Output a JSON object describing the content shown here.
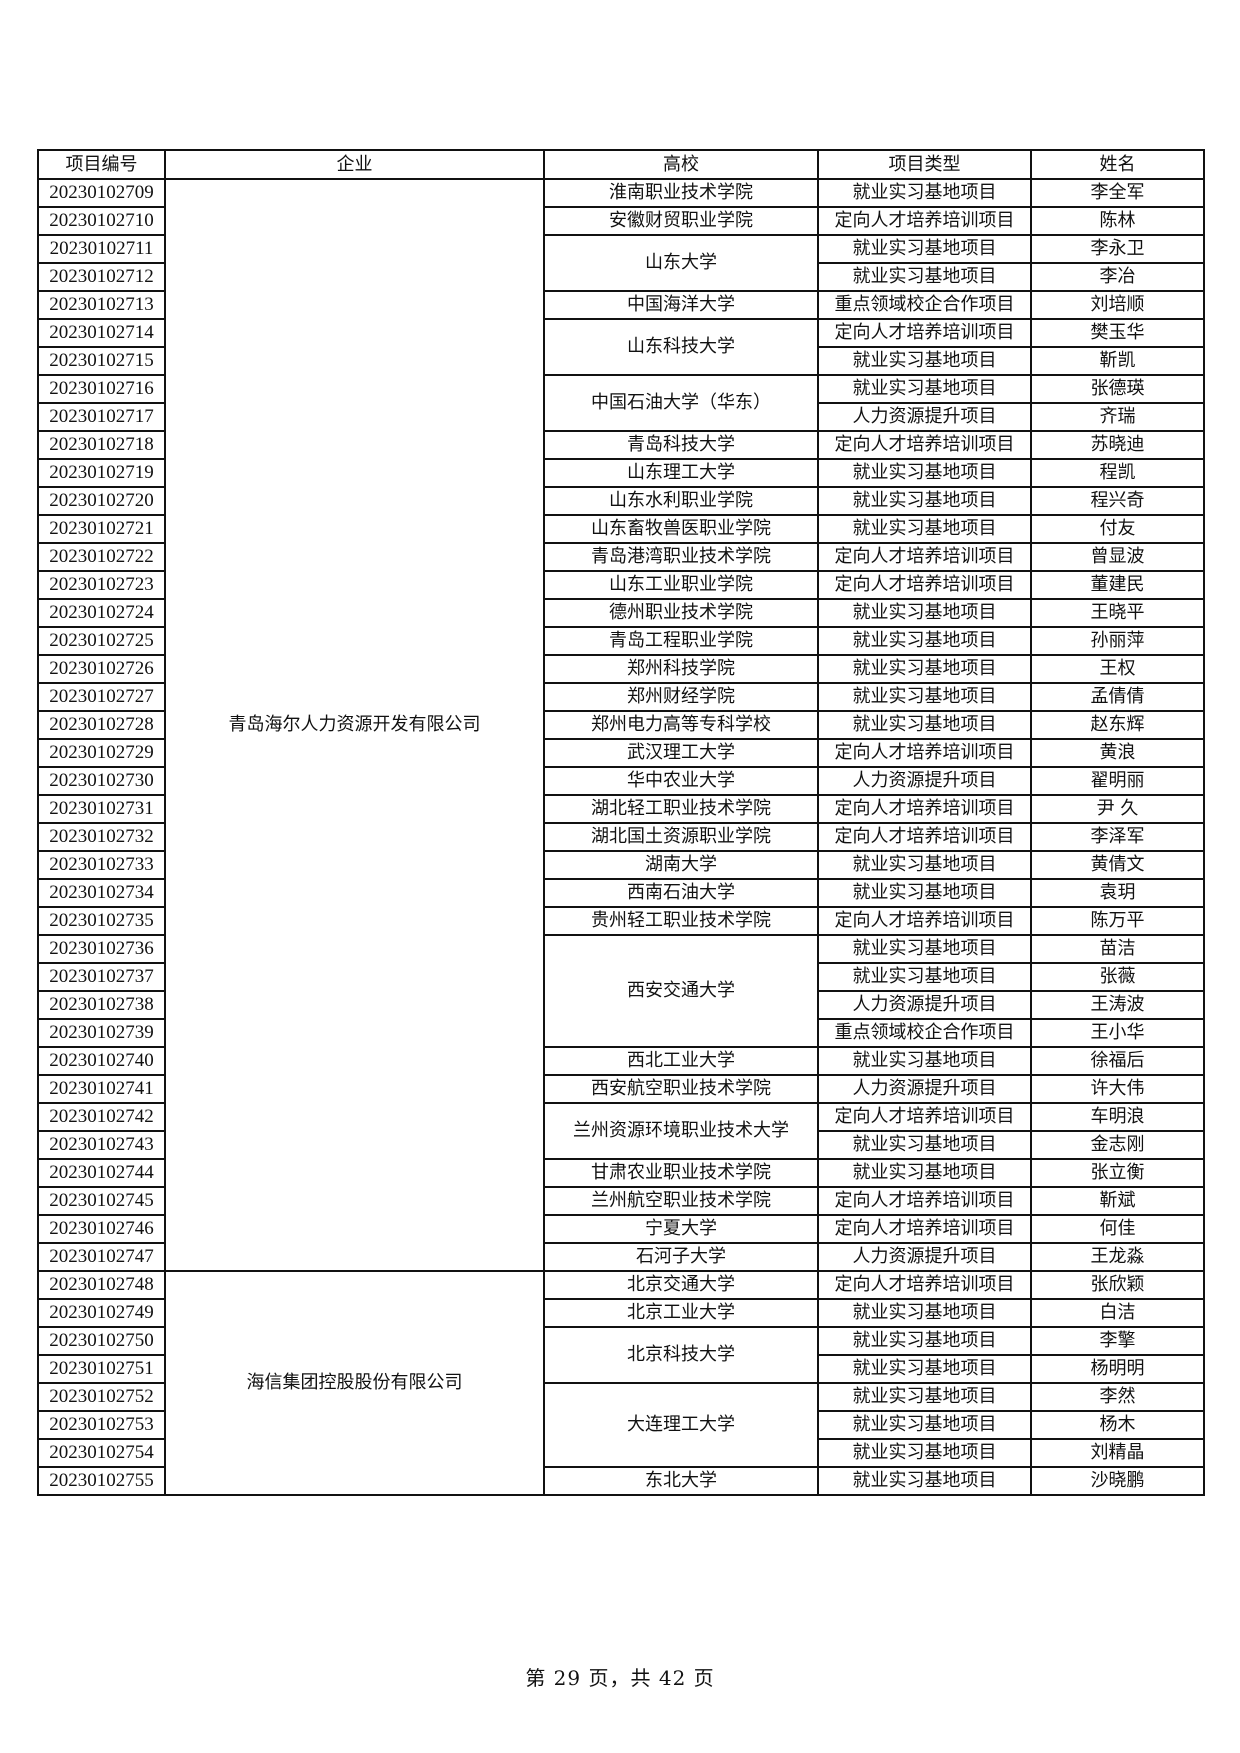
{
  "headers": [
    "项目编号",
    "企业",
    "高校",
    "项目类型",
    "姓名"
  ],
  "companies": [
    {
      "name": "青岛海尔人力资源开发有限公司",
      "span": 39
    },
    {
      "name": "海信集团控股股份有限公司",
      "span": 8
    }
  ],
  "schools": [
    {
      "name": "淮南职业技术学院",
      "span": 1
    },
    {
      "name": "安徽财贸职业学院",
      "span": 1
    },
    {
      "name": "山东大学",
      "span": 2
    },
    {
      "name": "中国海洋大学",
      "span": 1
    },
    {
      "name": "山东科技大学",
      "span": 2
    },
    {
      "name": "中国石油大学（华东）",
      "span": 2
    },
    {
      "name": "青岛科技大学",
      "span": 1
    },
    {
      "name": "山东理工大学",
      "span": 1
    },
    {
      "name": "山东水利职业学院",
      "span": 1
    },
    {
      "name": "山东畜牧兽医职业学院",
      "span": 1
    },
    {
      "name": "青岛港湾职业技术学院",
      "span": 1
    },
    {
      "name": "山东工业职业学院",
      "span": 1
    },
    {
      "name": "德州职业技术学院",
      "span": 1
    },
    {
      "name": "青岛工程职业学院",
      "span": 1
    },
    {
      "name": "郑州科技学院",
      "span": 1
    },
    {
      "name": "郑州财经学院",
      "span": 1
    },
    {
      "name": "郑州电力高等专科学校",
      "span": 1
    },
    {
      "name": "武汉理工大学",
      "span": 1
    },
    {
      "name": "华中农业大学",
      "span": 1
    },
    {
      "name": "湖北轻工职业技术学院",
      "span": 1
    },
    {
      "name": "湖北国土资源职业学院",
      "span": 1
    },
    {
      "name": "湖南大学",
      "span": 1
    },
    {
      "name": "西南石油大学",
      "span": 1
    },
    {
      "name": "贵州轻工职业技术学院",
      "span": 1
    },
    {
      "name": "西安交通大学",
      "span": 4
    },
    {
      "name": "西北工业大学",
      "span": 1
    },
    {
      "name": "西安航空职业技术学院",
      "span": 1
    },
    {
      "name": "兰州资源环境职业技术大学",
      "span": 2
    },
    {
      "name": "甘肃农业职业技术学院",
      "span": 1
    },
    {
      "name": "兰州航空职业技术学院",
      "span": 1
    },
    {
      "name": "宁夏大学",
      "span": 1
    },
    {
      "name": "石河子大学",
      "span": 1
    },
    {
      "name": "北京交通大学",
      "span": 1
    },
    {
      "name": "北京工业大学",
      "span": 1
    },
    {
      "name": "北京科技大学",
      "span": 2
    },
    {
      "name": "大连理工大学",
      "span": 3
    },
    {
      "name": "东北大学",
      "span": 1
    }
  ],
  "rows": [
    {
      "id": "20230102709",
      "type": "就业实习基地项目",
      "name": "李全军"
    },
    {
      "id": "20230102710",
      "type": "定向人才培养培训项目",
      "name": "陈林"
    },
    {
      "id": "20230102711",
      "type": "就业实习基地项目",
      "name": "李永卫"
    },
    {
      "id": "20230102712",
      "type": "就业实习基地项目",
      "name": "李冶"
    },
    {
      "id": "20230102713",
      "type": "重点领域校企合作项目",
      "name": "刘培顺"
    },
    {
      "id": "20230102714",
      "type": "定向人才培养培训项目",
      "name": "樊玉华"
    },
    {
      "id": "20230102715",
      "type": "就业实习基地项目",
      "name": "靳凯"
    },
    {
      "id": "20230102716",
      "type": "就业实习基地项目",
      "name": "张德瑛"
    },
    {
      "id": "20230102717",
      "type": "人力资源提升项目",
      "name": "齐瑞"
    },
    {
      "id": "20230102718",
      "type": "定向人才培养培训项目",
      "name": "苏晓迪"
    },
    {
      "id": "20230102719",
      "type": "就业实习基地项目",
      "name": "程凯"
    },
    {
      "id": "20230102720",
      "type": "就业实习基地项目",
      "name": "程兴奇"
    },
    {
      "id": "20230102721",
      "type": "就业实习基地项目",
      "name": "付友"
    },
    {
      "id": "20230102722",
      "type": "定向人才培养培训项目",
      "name": "曾显波"
    },
    {
      "id": "20230102723",
      "type": "定向人才培养培训项目",
      "name": "董建民"
    },
    {
      "id": "20230102724",
      "type": "就业实习基地项目",
      "name": "王晓平"
    },
    {
      "id": "20230102725",
      "type": "就业实习基地项目",
      "name": "孙丽萍"
    },
    {
      "id": "20230102726",
      "type": "就业实习基地项目",
      "name": "王权"
    },
    {
      "id": "20230102727",
      "type": "就业实习基地项目",
      "name": "孟倩倩"
    },
    {
      "id": "20230102728",
      "type": "就业实习基地项目",
      "name": "赵东辉"
    },
    {
      "id": "20230102729",
      "type": "定向人才培养培训项目",
      "name": "黄浪"
    },
    {
      "id": "20230102730",
      "type": "人力资源提升项目",
      "name": "翟明丽"
    },
    {
      "id": "20230102731",
      "type": "定向人才培养培训项目",
      "name": "尹 久"
    },
    {
      "id": "20230102732",
      "type": "定向人才培养培训项目",
      "name": "李泽军"
    },
    {
      "id": "20230102733",
      "type": "就业实习基地项目",
      "name": "黄倩文"
    },
    {
      "id": "20230102734",
      "type": "就业实习基地项目",
      "name": "袁玥"
    },
    {
      "id": "20230102735",
      "type": "定向人才培养培训项目",
      "name": "陈万平"
    },
    {
      "id": "20230102736",
      "type": "就业实习基地项目",
      "name": "苗洁"
    },
    {
      "id": "20230102737",
      "type": "就业实习基地项目",
      "name": "张薇"
    },
    {
      "id": "20230102738",
      "type": "人力资源提升项目",
      "name": "王涛波"
    },
    {
      "id": "20230102739",
      "type": "重点领域校企合作项目",
      "name": "王小华"
    },
    {
      "id": "20230102740",
      "type": "就业实习基地项目",
      "name": "徐福后"
    },
    {
      "id": "20230102741",
      "type": "人力资源提升项目",
      "name": "许大伟"
    },
    {
      "id": "20230102742",
      "type": "定向人才培养培训项目",
      "name": "车明浪"
    },
    {
      "id": "20230102743",
      "type": "就业实习基地项目",
      "name": "金志刚"
    },
    {
      "id": "20230102744",
      "type": "就业实习基地项目",
      "name": "张立衡"
    },
    {
      "id": "20230102745",
      "type": "定向人才培养培训项目",
      "name": "靳斌"
    },
    {
      "id": "20230102746",
      "type": "定向人才培养培训项目",
      "name": "何佳"
    },
    {
      "id": "20230102747",
      "type": "人力资源提升项目",
      "name": "王龙淼"
    },
    {
      "id": "20230102748",
      "type": "定向人才培养培训项目",
      "name": "张欣颖"
    },
    {
      "id": "20230102749",
      "type": "就业实习基地项目",
      "name": "白洁"
    },
    {
      "id": "20230102750",
      "type": "就业实习基地项目",
      "name": "李擎"
    },
    {
      "id": "20230102751",
      "type": "就业实习基地项目",
      "name": "杨明明"
    },
    {
      "id": "20230102752",
      "type": "就业实习基地项目",
      "name": "李然"
    },
    {
      "id": "20230102753",
      "type": "就业实习基地项目",
      "name": "杨木"
    },
    {
      "id": "20230102754",
      "type": "就业实习基地项目",
      "name": "刘精晶"
    },
    {
      "id": "20230102755",
      "type": "就业实习基地项目",
      "name": "沙晓鹏"
    }
  ],
  "footer": "第 29 页，共 42 页"
}
